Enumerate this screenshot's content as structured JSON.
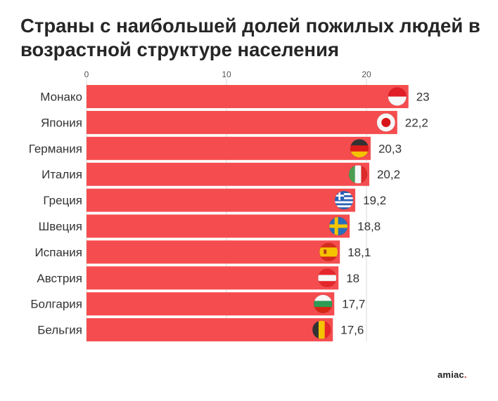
{
  "title": "Страны с наибольшей долей пожилых людей в возрастной структуре населения",
  "brand": {
    "text": "amiac",
    "dot": "."
  },
  "colors": {
    "bar": "#f54d4f",
    "grid": "#d8d8d8",
    "text": "#333333",
    "title": "#262626"
  },
  "chart_data": {
    "type": "bar",
    "orientation": "horizontal",
    "categories": [
      "Монако",
      "Япония",
      "Германия",
      "Италия",
      "Греция",
      "Швеция",
      "Испания",
      "Австрия",
      "Болгария",
      "Бельгия"
    ],
    "values": [
      23,
      22.2,
      20.3,
      20.2,
      19.2,
      18.8,
      18.1,
      18,
      17.7,
      17.6
    ],
    "value_labels": [
      "23",
      "22,2",
      "20,3",
      "20,2",
      "19,2",
      "18,8",
      "18,1",
      "18",
      "17,7",
      "17,6"
    ],
    "flags": [
      "flag-monaco-icon",
      "flag-japan-icon",
      "flag-germany-icon",
      "flag-italy-icon",
      "flag-greece-icon",
      "flag-sweden-icon",
      "flag-spain-icon",
      "flag-austria-icon",
      "flag-bulgaria-icon",
      "flag-belgium-icon"
    ],
    "x_ticks": [
      0,
      10,
      20
    ],
    "xlim": [
      0,
      23
    ],
    "grid": true,
    "xlabel": "",
    "ylabel": ""
  }
}
